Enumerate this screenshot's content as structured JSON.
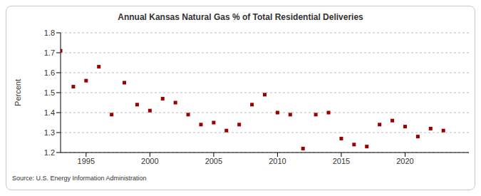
{
  "chart_data": {
    "type": "scatter",
    "title": "Annual Kansas Natural Gas % of Total Residential Deliveries",
    "y_label": "Percent",
    "source": "Source: U.S. Energy Information Administration",
    "x": [
      1993,
      1994,
      1995,
      1996,
      1997,
      1998,
      1999,
      2000,
      2001,
      2002,
      2003,
      2004,
      2005,
      2006,
      2007,
      2008,
      2009,
      2010,
      2011,
      2012,
      2013,
      2014,
      2015,
      2016,
      2017,
      2018,
      2019,
      2020,
      2021,
      2022,
      2023
    ],
    "values": [
      1.71,
      1.53,
      1.56,
      1.63,
      1.39,
      1.55,
      1.44,
      1.41,
      1.47,
      1.45,
      1.39,
      1.34,
      1.35,
      1.31,
      1.34,
      1.44,
      1.49,
      1.4,
      1.39,
      1.22,
      1.39,
      1.4,
      1.27,
      1.24,
      1.23,
      1.34,
      1.36,
      1.33,
      1.28,
      1.32,
      1.31
    ],
    "color": "#990000",
    "marker": "square",
    "xlim": [
      1993,
      2025
    ],
    "xticks": [
      1995,
      2000,
      2005,
      2010,
      2015,
      2020
    ],
    "ylim": [
      1.2,
      1.8
    ],
    "yticks": [
      1.2,
      1.3,
      1.4,
      1.5,
      1.6,
      1.7,
      1.8
    ],
    "grid": true
  }
}
